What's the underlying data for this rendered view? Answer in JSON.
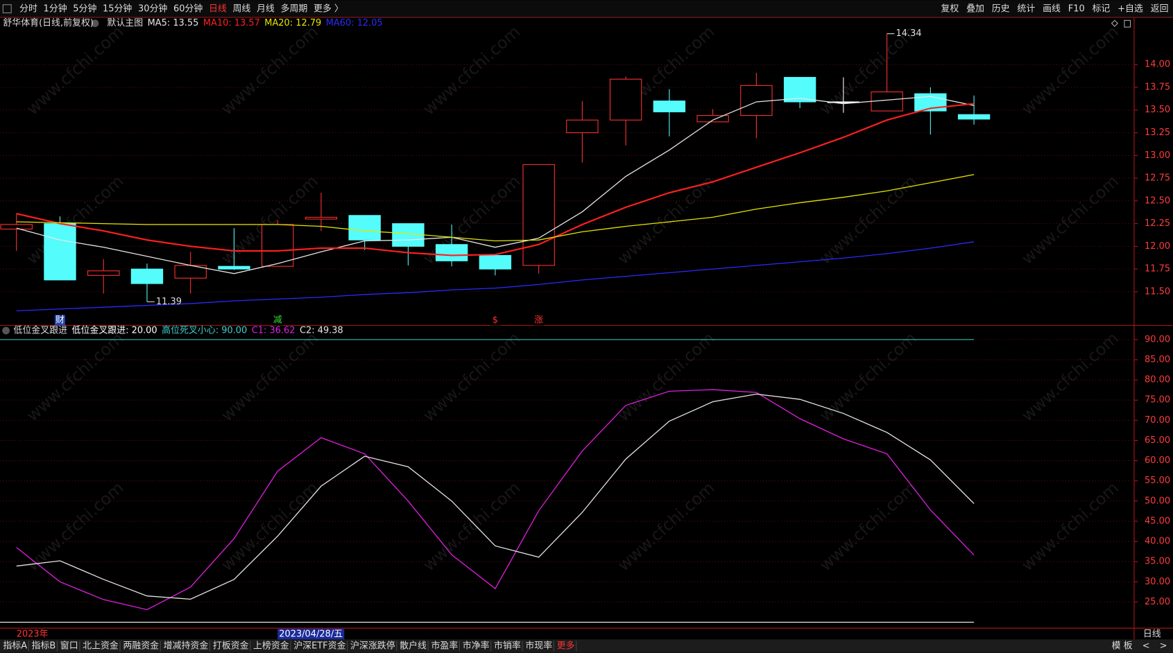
{
  "toolbar": {
    "left": [
      {
        "label": "分时",
        "color": "#dddddd"
      },
      {
        "label": "1分钟",
        "color": "#dddddd"
      },
      {
        "label": "5分钟",
        "color": "#dddddd"
      },
      {
        "label": "15分钟",
        "color": "#dddddd"
      },
      {
        "label": "30分钟",
        "color": "#dddddd"
      },
      {
        "label": "60分钟",
        "color": "#dddddd"
      },
      {
        "label": "日线",
        "color": "#ff3333"
      },
      {
        "label": "周线",
        "color": "#dddddd"
      },
      {
        "label": "月线",
        "color": "#dddddd"
      },
      {
        "label": "多周期",
        "color": "#dddddd"
      },
      {
        "label": "更多 〉",
        "color": "#dddddd"
      }
    ],
    "right": [
      {
        "label": "复权",
        "color": "#dddddd"
      },
      {
        "label": "叠加",
        "color": "#dddddd"
      },
      {
        "label": "历史",
        "color": "#dddddd"
      },
      {
        "label": "统计",
        "color": "#dddddd"
      },
      {
        "label": "画线",
        "color": "#dddddd"
      },
      {
        "label": "F10",
        "color": "#dddddd"
      },
      {
        "label": "标记",
        "color": "#dddddd"
      },
      {
        "label": "+自选",
        "color": "#dddddd"
      },
      {
        "label": "返回",
        "color": "#dddddd"
      }
    ]
  },
  "watermark": "www.cfchi.com",
  "chart_data": [
    {
      "type": "candlestick",
      "title": "舒华体育(日线,前复权)",
      "subtitle": "默认主图",
      "categories": [
        null,
        null,
        null,
        null,
        null,
        null,
        null,
        null,
        null,
        null,
        null,
        null,
        null,
        null,
        null,
        null,
        null,
        null,
        null,
        null,
        null,
        null,
        null
      ],
      "open": [
        12.19,
        12.25,
        11.68,
        11.75,
        11.65,
        11.78,
        11.78,
        12.3,
        12.34,
        12.25,
        12.02,
        11.9,
        11.79,
        13.25,
        13.39,
        13.6,
        13.37,
        13.44,
        13.86,
        13.59,
        13.49,
        13.68,
        13.45
      ],
      "high": [
        12.36,
        12.33,
        11.86,
        11.81,
        11.94,
        12.2,
        12.29,
        12.59,
        12.34,
        12.25,
        12.24,
        11.91,
        12.9,
        13.6,
        13.87,
        13.73,
        13.51,
        13.91,
        13.86,
        13.86,
        14.34,
        13.75,
        13.66
      ],
      "low": [
        11.95,
        11.63,
        11.48,
        11.39,
        11.48,
        11.74,
        11.78,
        12.17,
        11.96,
        11.79,
        11.78,
        11.68,
        11.7,
        12.92,
        13.11,
        13.21,
        13.37,
        13.19,
        13.52,
        13.47,
        13.49,
        13.23,
        13.34
      ],
      "close": [
        12.24,
        11.63,
        11.73,
        11.59,
        11.79,
        11.75,
        12.24,
        12.32,
        12.07,
        12.0,
        11.84,
        11.75,
        12.9,
        13.39,
        13.84,
        13.48,
        13.44,
        13.77,
        13.59,
        13.59,
        13.7,
        13.49,
        13.4
      ],
      "up_color": "#ff3232",
      "down_color": "#54fcfc",
      "flat_color": "#ffffff",
      "series": [
        {
          "name": "MA5: 13.55",
          "color": "#e6e6e6",
          "values": [
            12.2,
            12.07,
            11.99,
            11.89,
            11.79,
            11.7,
            11.81,
            11.94,
            12.06,
            12.07,
            12.1,
            11.99,
            12.09,
            12.38,
            12.77,
            13.06,
            13.39,
            13.59,
            13.63,
            13.57,
            13.61,
            13.65,
            13.55
          ]
        },
        {
          "name": "MA10: 13.57",
          "color": "#ff2020",
          "values": [
            12.36,
            12.25,
            12.17,
            12.07,
            12.0,
            11.95,
            11.95,
            11.98,
            11.98,
            11.93,
            11.9,
            11.91,
            12.02,
            12.24,
            12.43,
            12.59,
            12.71,
            12.87,
            13.03,
            13.2,
            13.39,
            13.52,
            13.57
          ]
        },
        {
          "name": "MA20: 12.79",
          "color": "#e6e600",
          "values": [
            12.27,
            12.26,
            12.25,
            12.24,
            12.24,
            12.24,
            12.24,
            12.22,
            12.17,
            12.14,
            12.1,
            12.06,
            12.07,
            12.16,
            12.22,
            12.27,
            12.32,
            12.41,
            12.48,
            12.54,
            12.61,
            12.7,
            12.79
          ]
        },
        {
          "name": "MA60: 12.05",
          "color": "#2a2aff",
          "values": [
            11.29,
            11.31,
            11.33,
            11.35,
            11.37,
            11.4,
            11.42,
            11.44,
            11.47,
            11.49,
            11.52,
            11.54,
            11.58,
            11.63,
            11.67,
            11.71,
            11.75,
            11.79,
            11.83,
            11.87,
            11.92,
            11.98,
            12.05
          ]
        }
      ],
      "annotations": {
        "high": 14.34,
        "low": 11.39
      },
      "event_markers": [
        null,
        {
          "text": "财",
          "color": "#ffffff",
          "background": "#2244aa"
        },
        null,
        null,
        null,
        null,
        {
          "text": "减",
          "color": "#33dd33",
          "background": "#000000"
        },
        null,
        null,
        null,
        null,
        {
          "text": "$",
          "color": "#ff3333",
          "background": "#000000"
        },
        {
          "text": "涨",
          "color": "#ff3333",
          "background": "#000000"
        },
        null,
        null,
        null,
        null,
        null,
        null,
        null,
        null,
        null,
        null
      ],
      "ylim": [
        11.13,
        14.52
      ],
      "yticks": [
        {
          "value": 11.5,
          "label": "11.50"
        },
        {
          "value": 11.75,
          "label": "11.75"
        },
        {
          "value": 12,
          "label": "12.00"
        },
        {
          "value": 12.25,
          "label": "12.25"
        },
        {
          "value": 12.5,
          "label": "12.50"
        },
        {
          "value": 12.75,
          "label": "12.75"
        },
        {
          "value": 13,
          "label": "13.00"
        },
        {
          "value": 13.25,
          "label": "13.25"
        },
        {
          "value": 13.5,
          "label": "13.50"
        },
        {
          "value": 13.75,
          "label": "13.75"
        },
        {
          "value": 14,
          "label": "14.00"
        }
      ],
      "grid": true
    },
    {
      "type": "line",
      "title": "低位金叉跟进",
      "categories": [
        null,
        null,
        null,
        null,
        null,
        null,
        null,
        null,
        null,
        null,
        null,
        null,
        null,
        null,
        null,
        null,
        null,
        null,
        null,
        null,
        null,
        null,
        null
      ],
      "reference_lines": [
        {
          "name": "低位金叉跟进: 20.00",
          "value": 20,
          "color": "#ffffff"
        },
        {
          "name": "高位死叉小心: 90.00",
          "value": 90,
          "color": "#3fd0d0"
        }
      ],
      "series": [
        {
          "name": "C1: 36.62",
          "color": "#e020e0",
          "values": [
            38.5,
            30.0,
            25.6,
            23.1,
            28.7,
            40.7,
            57.4,
            65.7,
            61.7,
            50.0,
            36.7,
            28.3,
            47.6,
            62.4,
            73.7,
            77.2,
            77.6,
            76.9,
            70.4,
            65.4,
            61.7,
            47.8,
            36.62
          ]
        },
        {
          "name": "C2: 49.38",
          "color": "#e6e6e6",
          "values": [
            33.9,
            35.2,
            30.6,
            26.5,
            25.7,
            30.6,
            41.3,
            53.7,
            61.1,
            58.5,
            50.0,
            38.9,
            36.1,
            47.2,
            60.4,
            69.8,
            74.6,
            76.5,
            75.2,
            71.7,
            67.0,
            60.2,
            49.38
          ]
        }
      ],
      "ylim": [
        18.52,
        93.33
      ],
      "yticks": [
        {
          "value": 25,
          "label": "25.00"
        },
        {
          "value": 30,
          "label": "30.00"
        },
        {
          "value": 35,
          "label": "35.00"
        },
        {
          "value": 40,
          "label": "40.00"
        },
        {
          "value": 45,
          "label": "45.00"
        },
        {
          "value": 50,
          "label": "50.00"
        },
        {
          "value": 55,
          "label": "55.00"
        },
        {
          "value": 60,
          "label": "60.00"
        },
        {
          "value": 65,
          "label": "65.00"
        },
        {
          "value": 70,
          "label": "70.00"
        },
        {
          "value": 75,
          "label": "75.00"
        },
        {
          "value": 80,
          "label": "80.00"
        },
        {
          "value": 85,
          "label": "85.00"
        },
        {
          "value": 90,
          "label": "90.00"
        }
      ],
      "grid": true
    }
  ],
  "date_bar": {
    "year": "2023年",
    "cursor_date": "2023/04/28/五",
    "period": "日线"
  },
  "bottom_tabs": [
    {
      "label": "指标A",
      "color": "#dddddd"
    },
    {
      "label": "指标B",
      "color": "#dddddd"
    },
    {
      "label": "窗口",
      "color": "#dddddd"
    },
    {
      "label": "北上资金",
      "color": "#dddddd"
    },
    {
      "label": "两融资金",
      "color": "#dddddd"
    },
    {
      "label": "增减持资金",
      "color": "#dddddd"
    },
    {
      "label": "打板资金",
      "color": "#dddddd"
    },
    {
      "label": "上榜资金",
      "color": "#dddddd"
    },
    {
      "label": "沪深ETF资金",
      "color": "#dddddd"
    },
    {
      "label": "沪深涨跌停",
      "color": "#dddddd"
    },
    {
      "label": "散户线",
      "color": "#dddddd"
    },
    {
      "label": "市盈率",
      "color": "#dddddd"
    },
    {
      "label": "市净率",
      "color": "#dddddd"
    },
    {
      "label": "市销率",
      "color": "#dddddd"
    },
    {
      "label": "市现率",
      "color": "#dddddd"
    },
    {
      "label": "更多",
      "color": "#ff3333"
    }
  ],
  "bottom_right": "模 板"
}
